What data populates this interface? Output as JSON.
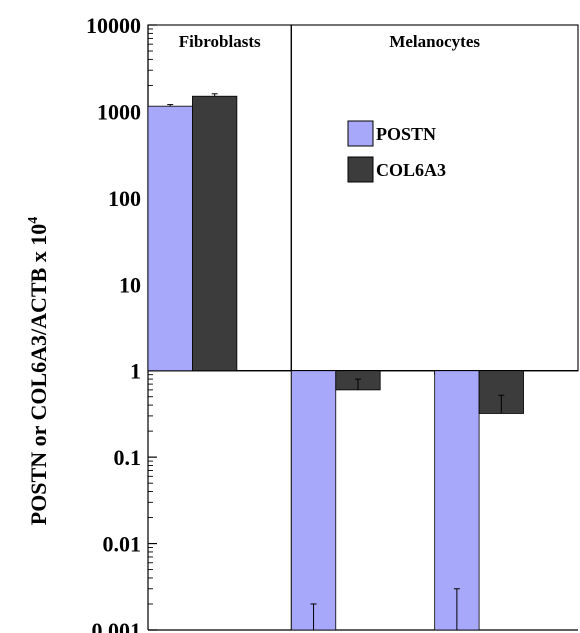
{
  "chart_data": {
    "type": "bar",
    "yscale": "log",
    "ylim": [
      0.001,
      10000
    ],
    "baseline": 1,
    "ylabel": "POSTN or COL6A3/ACTB x 10",
    "ylabel_superscript": "4",
    "yticks": [
      {
        "value": 10000,
        "label": "10000"
      },
      {
        "value": 1000,
        "label": "1000"
      },
      {
        "value": 100,
        "label": "100"
      },
      {
        "value": 10,
        "label": "10"
      },
      {
        "value": 1,
        "label": "1"
      },
      {
        "value": 0.1,
        "label": "0.1"
      },
      {
        "value": 0.01,
        "label": "0.01"
      },
      {
        "value": 0.001,
        "label": "0.001"
      }
    ],
    "panels": [
      {
        "label": "Fibroblasts",
        "groups": 1
      },
      {
        "label": "Melanocytes",
        "groups": 2
      }
    ],
    "series": [
      {
        "name": "POSTN",
        "color": "#a8a8fa",
        "values": [
          1150,
          0.001,
          0.001
        ],
        "errors": [
          1200,
          0.002,
          0.003
        ]
      },
      {
        "name": "COL6A3",
        "color": "#3c3c3c",
        "values": [
          1500,
          0.6,
          0.32
        ],
        "errors": [
          1600,
          0.8,
          0.52
        ]
      }
    ],
    "legend": {
      "position": "center-right of top panel"
    }
  }
}
